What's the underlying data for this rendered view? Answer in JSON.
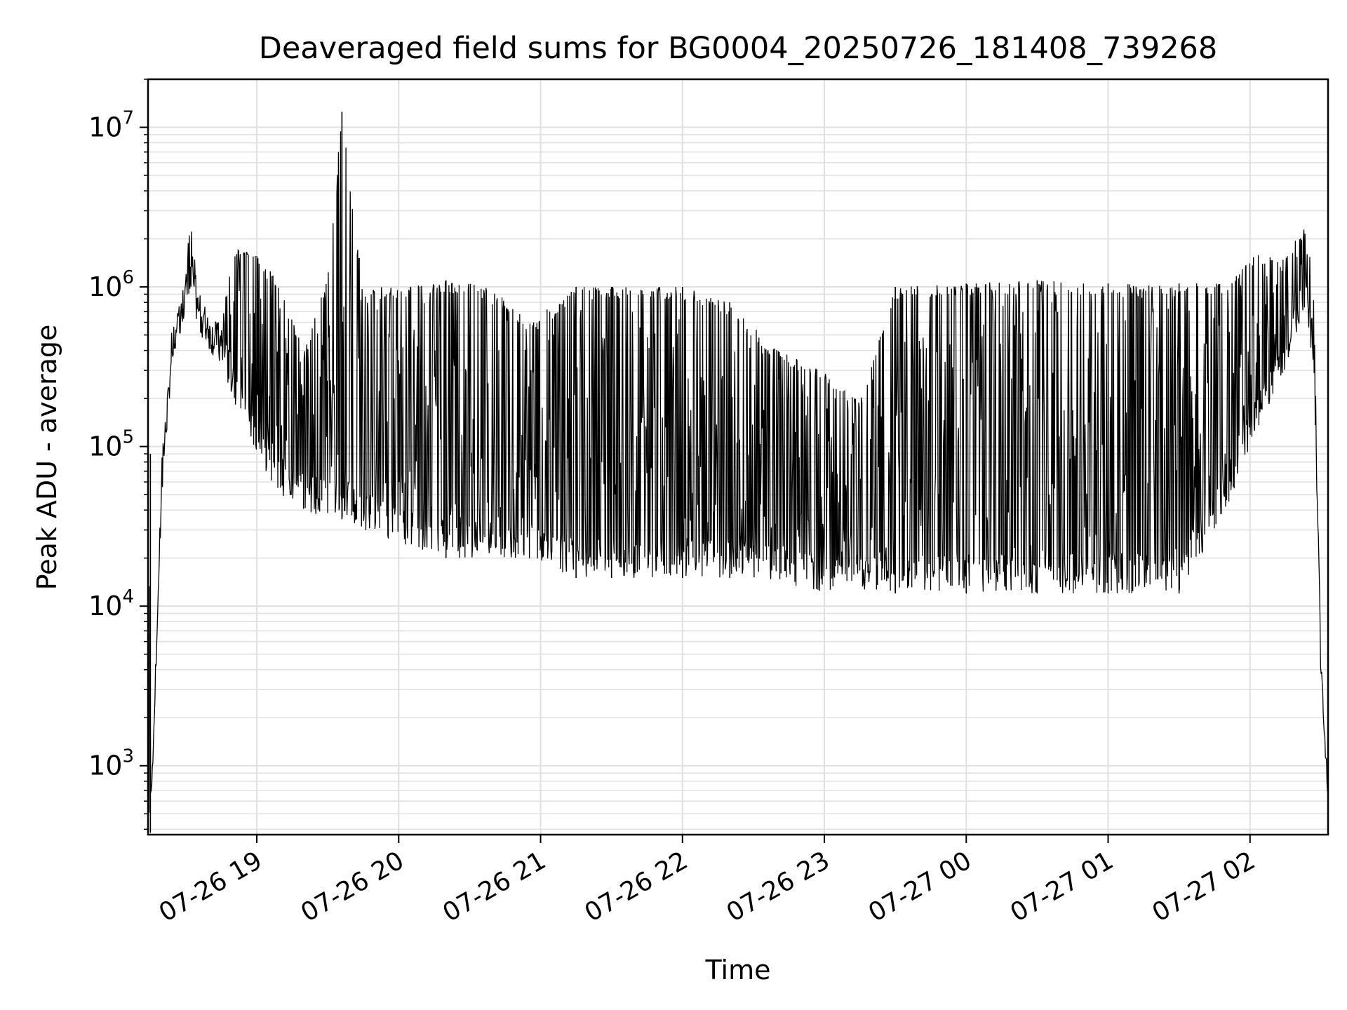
{
  "chart_data": {
    "type": "line",
    "title": "Deaveraged field sums for BG0004_20250726_181408_739268",
    "xlabel": "Time",
    "ylabel": "Peak ADU - average",
    "yscale": "log",
    "ylim": [
      370,
      20000000
    ],
    "xlim": [
      "2025-07-26 18:14:00",
      "2025-07-27 02:33:00"
    ],
    "grid": true,
    "line_color": "#000000",
    "grid_color": "#e0e0e0",
    "x_ticks": [
      {
        "label": "07-26 19",
        "t": "2025-07-26 19:00"
      },
      {
        "label": "07-26 20",
        "t": "2025-07-26 20:00"
      },
      {
        "label": "07-26 21",
        "t": "2025-07-26 21:00"
      },
      {
        "label": "07-26 22",
        "t": "2025-07-26 22:00"
      },
      {
        "label": "07-26 23",
        "t": "2025-07-26 23:00"
      },
      {
        "label": "07-27 00",
        "t": "2025-07-27 00:00"
      },
      {
        "label": "07-27 01",
        "t": "2025-07-27 01:00"
      },
      {
        "label": "07-27 02",
        "t": "2025-07-27 02:00"
      }
    ],
    "y_ticks": [
      {
        "base": "10",
        "exp": "3",
        "value": 1000
      },
      {
        "base": "10",
        "exp": "4",
        "value": 10000
      },
      {
        "base": "10",
        "exp": "5",
        "value": 100000
      },
      {
        "base": "10",
        "exp": "6",
        "value": 1000000
      },
      {
        "base": "10",
        "exp": "7",
        "value": 10000000
      }
    ],
    "series": [
      {
        "description": "deaveraged peak ADU over time (envelope of the densely sampled series)",
        "points": [
          {
            "t": "2025-07-26 18:14",
            "floor": 380,
            "peak": 380
          },
          {
            "t": "2025-07-26 18:15",
            "floor": 380,
            "peak": 90000
          },
          {
            "t": "2025-07-26 18:16",
            "floor": 1000,
            "peak": 1000
          },
          {
            "t": "2025-07-26 18:20",
            "floor": 50000,
            "peak": 100000
          },
          {
            "t": "2025-07-26 18:24",
            "floor": 300000,
            "peak": 400000
          },
          {
            "t": "2025-07-26 18:30",
            "floor": 700000,
            "peak": 1200000
          },
          {
            "t": "2025-07-26 18:32",
            "floor": 800000,
            "peak": 3000000
          },
          {
            "t": "2025-07-26 18:36",
            "floor": 500000,
            "peak": 700000
          },
          {
            "t": "2025-07-26 18:45",
            "floor": 300000,
            "peak": 600000
          },
          {
            "t": "2025-07-26 18:50",
            "floor": 200000,
            "peak": 1700000
          },
          {
            "t": "2025-07-26 19:00",
            "floor": 80000,
            "peak": 1700000
          },
          {
            "t": "2025-07-26 19:10",
            "floor": 50000,
            "peak": 1000000
          },
          {
            "t": "2025-07-26 19:20",
            "floor": 40000,
            "peak": 400000
          },
          {
            "t": "2025-07-26 19:30",
            "floor": 35000,
            "peak": 1200000
          },
          {
            "t": "2025-07-26 19:36",
            "floor": 35000,
            "peak": 12500000
          },
          {
            "t": "2025-07-26 19:45",
            "floor": 30000,
            "peak": 1000000
          },
          {
            "t": "2025-07-26 20:00",
            "floor": 25000,
            "peak": 1000000
          },
          {
            "t": "2025-07-26 20:20",
            "floor": 20000,
            "peak": 1100000
          },
          {
            "t": "2025-07-26 20:40",
            "floor": 20000,
            "peak": 1000000
          },
          {
            "t": "2025-07-26 20:55",
            "floor": 20000,
            "peak": 600000
          },
          {
            "t": "2025-07-26 21:15",
            "floor": 15000,
            "peak": 1000000
          },
          {
            "t": "2025-07-26 21:30",
            "floor": 15000,
            "peak": 1000000
          },
          {
            "t": "2025-07-26 22:00",
            "floor": 15000,
            "peak": 1000000
          },
          {
            "t": "2025-07-26 22:20",
            "floor": 15000,
            "peak": 800000
          },
          {
            "t": "2025-07-26 22:40",
            "floor": 14000,
            "peak": 400000
          },
          {
            "t": "2025-07-26 23:00",
            "floor": 12000,
            "peak": 300000
          },
          {
            "t": "2025-07-26 23:15",
            "floor": 12000,
            "peak": 200000
          },
          {
            "t": "2025-07-26 23:30",
            "floor": 12000,
            "peak": 1000000
          },
          {
            "t": "2025-07-27 00:00",
            "floor": 12000,
            "peak": 1050000
          },
          {
            "t": "2025-07-27 00:30",
            "floor": 12000,
            "peak": 1100000
          },
          {
            "t": "2025-07-27 01:00",
            "floor": 12000,
            "peak": 1050000
          },
          {
            "t": "2025-07-27 01:30",
            "floor": 12000,
            "peak": 1050000
          },
          {
            "t": "2025-07-27 01:50",
            "floor": 40000,
            "peak": 1100000
          },
          {
            "t": "2025-07-27 02:00",
            "floor": 100000,
            "peak": 1600000
          },
          {
            "t": "2025-07-27 02:15",
            "floor": 300000,
            "peak": 1600000
          },
          {
            "t": "2025-07-27 02:24",
            "floor": 600000,
            "peak": 2600000
          },
          {
            "t": "2025-07-27 02:27",
            "floor": 300000,
            "peak": 800000
          },
          {
            "t": "2025-07-27 02:30",
            "floor": 3000,
            "peak": 5000
          },
          {
            "t": "2025-07-27 02:33",
            "floor": 600,
            "peak": 600
          }
        ]
      }
    ]
  }
}
